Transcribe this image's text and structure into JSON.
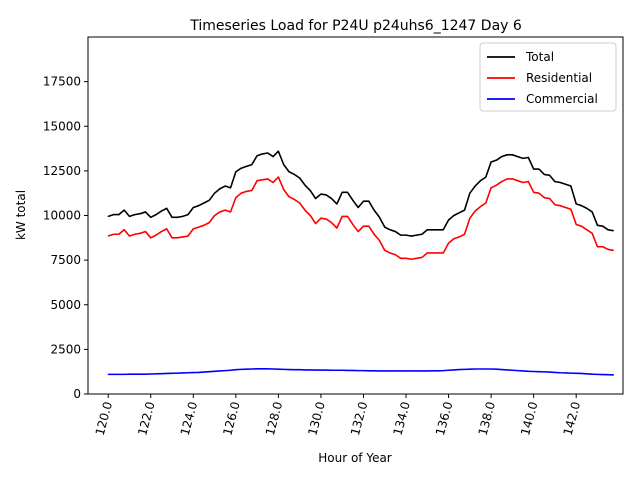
{
  "chart_data": {
    "type": "line",
    "title": "Timeseries Load for P24U p24uhs6_1247  Day 6",
    "xlabel": "Hour of Year",
    "ylabel": "kW total",
    "xlim": [
      119.05,
      144.2
    ],
    "ylim": [
      0,
      20000
    ],
    "xticks": [
      "120.0",
      "122.0",
      "124.0",
      "126.0",
      "128.0",
      "130.0",
      "132.0",
      "134.0",
      "136.0",
      "138.0",
      "140.0",
      "142.0"
    ],
    "xtick_values": [
      120,
      122,
      124,
      126,
      128,
      130,
      132,
      134,
      136,
      138,
      140,
      142
    ],
    "yticks": [
      "0",
      "2500",
      "5000",
      "7500",
      "10000",
      "12500",
      "15000",
      "17500"
    ],
    "ytick_values": [
      0,
      2500,
      5000,
      7500,
      10000,
      12500,
      15000,
      17500
    ],
    "legend_position": "top-right",
    "x_start": 120.0,
    "x_step": 0.25,
    "series": [
      {
        "name": "Total",
        "color": "#000000",
        "values": [
          9950,
          10050,
          10050,
          10300,
          9950,
          10050,
          10100,
          10200,
          9900,
          10050,
          10250,
          10400,
          9900,
          9900,
          9950,
          10050,
          10450,
          10550,
          10700,
          10850,
          11250,
          11500,
          11650,
          11550,
          12450,
          12650,
          12750,
          12850,
          13350,
          13450,
          13500,
          13300,
          13600,
          12850,
          12450,
          12300,
          12100,
          11700,
          11400,
          10950,
          11200,
          11150,
          10950,
          10650,
          11300,
          11300,
          10850,
          10450,
          10800,
          10800,
          10300,
          9900,
          9350,
          9200,
          9100,
          8900,
          8900,
          8850,
          8900,
          8950,
          9200,
          9200,
          9200,
          9200,
          9750,
          10000,
          10150,
          10300,
          11250,
          11650,
          11950,
          12150,
          13000,
          13100,
          13300,
          13400,
          13400,
          13300,
          13200,
          13250,
          12600,
          12600,
          12300,
          12250,
          11900,
          11850,
          11750,
          11650,
          10650,
          10550,
          10400,
          10200,
          9450,
          9400,
          9200,
          9150
        ]
      },
      {
        "name": "Residential",
        "color": "#ff0000",
        "values": [
          8850,
          8950,
          8950,
          9200,
          8850,
          8950,
          9000,
          9100,
          8750,
          8900,
          9100,
          9250,
          8750,
          8750,
          8800,
          8850,
          9250,
          9350,
          9450,
          9600,
          10000,
          10200,
          10300,
          10200,
          11000,
          11250,
          11350,
          11400,
          11950,
          12000,
          12050,
          11850,
          12150,
          11450,
          11050,
          10900,
          10700,
          10300,
          10000,
          9550,
          9850,
          9800,
          9600,
          9300,
          9950,
          9950,
          9500,
          9100,
          9400,
          9400,
          8950,
          8600,
          8050,
          7900,
          7800,
          7600,
          7600,
          7550,
          7600,
          7650,
          7900,
          7900,
          7900,
          7900,
          8450,
          8700,
          8800,
          8950,
          9850,
          10250,
          10500,
          10700,
          11550,
          11700,
          11900,
          12050,
          12050,
          11950,
          11850,
          11900,
          11300,
          11250,
          11000,
          10950,
          10600,
          10550,
          10450,
          10350,
          9500,
          9400,
          9200,
          9000,
          8250,
          8250,
          8100,
          8050
        ]
      },
      {
        "name": "Commercial",
        "color": "#0000ff",
        "values": [
          1100,
          1100,
          1100,
          1100,
          1110,
          1110,
          1110,
          1110,
          1120,
          1130,
          1140,
          1150,
          1160,
          1170,
          1180,
          1190,
          1200,
          1210,
          1230,
          1250,
          1270,
          1290,
          1310,
          1330,
          1360,
          1380,
          1390,
          1400,
          1410,
          1410,
          1410,
          1400,
          1390,
          1380,
          1370,
          1360,
          1360,
          1350,
          1350,
          1340,
          1340,
          1340,
          1330,
          1330,
          1330,
          1320,
          1320,
          1310,
          1310,
          1300,
          1300,
          1290,
          1290,
          1290,
          1290,
          1290,
          1290,
          1290,
          1290,
          1290,
          1290,
          1300,
          1300,
          1310,
          1330,
          1350,
          1370,
          1380,
          1390,
          1400,
          1400,
          1400,
          1400,
          1390,
          1370,
          1350,
          1330,
          1310,
          1290,
          1270,
          1260,
          1250,
          1240,
          1230,
          1210,
          1190,
          1180,
          1170,
          1160,
          1150,
          1130,
          1110,
          1100,
          1090,
          1080,
          1070
        ]
      }
    ]
  }
}
